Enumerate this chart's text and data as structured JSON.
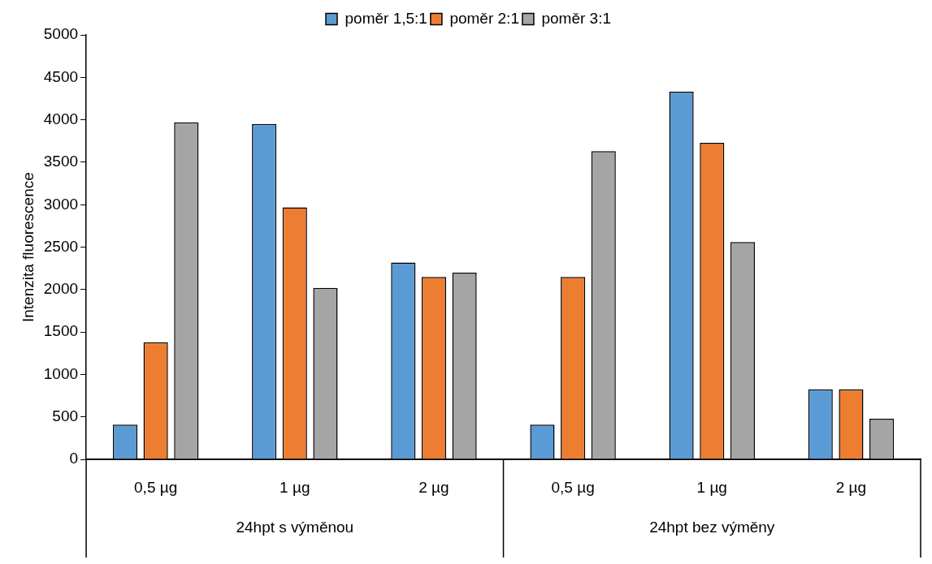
{
  "chart_data": {
    "type": "bar",
    "ylabel": "Intenzita fluorescence",
    "categories": [
      "0,5 µg",
      "1 µg",
      "2 µg",
      "0,5 µg",
      "1 µg",
      "2 µg"
    ],
    "annotations": [
      "24hpt s výměnou",
      "24hpt bez výměny"
    ],
    "series": [
      {
        "name": "poměr 1,5:1",
        "color": "#5b9bd5",
        "values": [
          410,
          3950,
          2320,
          410,
          4330,
          825
        ]
      },
      {
        "name": "poměr 2:1",
        "color": "#ed7d31",
        "values": [
          1380,
          2970,
          2150,
          2150,
          3730,
          825
        ]
      },
      {
        "name": "poměr 3:1",
        "color": "#a5a5a5",
        "values": [
          3970,
          2020,
          2200,
          3630,
          2560,
          480
        ]
      }
    ],
    "ylim": [
      0,
      5000
    ],
    "yticks": [
      0,
      500,
      1000,
      1500,
      2000,
      2500,
      3000,
      3500,
      4000,
      4500,
      5000
    ],
    "grid": false,
    "legend": "top"
  }
}
